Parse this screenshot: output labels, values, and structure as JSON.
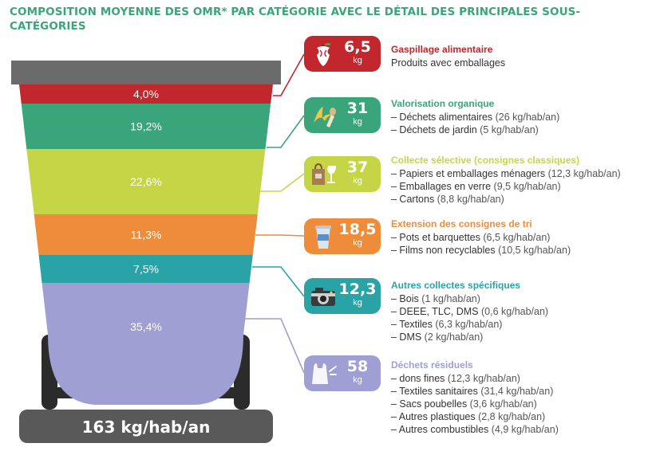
{
  "title": "COMPOSITION MOYENNE DES OMR* PAR CATÉGORIE AVEC LE DÉTAIL DES PRINCIPALES SOUS-CATÉGORIES",
  "total_label": "163 kg/hab/an",
  "colors": {
    "title": "#3aa57a",
    "bin_lid": "#6b6b6b",
    "bin_base": "#595959",
    "wheel": "#2b2b2b"
  },
  "chart_data": {
    "type": "bar",
    "title": "COMPOSITION MOYENNE DES OMR* PAR CATÉGORIE AVEC LE DÉTAIL DES PRINCIPALES SOUS-CATÉGORIES",
    "unit": "kg",
    "categories": [
      "Gaspillage alimentaire",
      "Valorisation organique",
      "Collecte sélective (consignes classiques)",
      "Extension des consignes de tri",
      "Autres collectes spécifiques",
      "Déchets résiduels"
    ],
    "values": [
      6.5,
      31,
      37,
      18.5,
      12.3,
      58
    ],
    "value_labels": [
      "6,5",
      "31",
      "37",
      "18,5",
      "12,3",
      "58"
    ],
    "shares": [
      4.0,
      19.2,
      22.6,
      11.3,
      7.5,
      35.4
    ],
    "share_labels": [
      "4,0%",
      "19,2%",
      "22,6%",
      "11,3%",
      "7,5%",
      "35,4%"
    ],
    "total": "163 kg/hab/an"
  },
  "categories": [
    {
      "title": "Gaspillage alimentaire",
      "value": "6,5",
      "unit": "kg",
      "percent": "4,0%",
      "color": "#c1272d",
      "icon": "apple-core-icon",
      "items": [
        {
          "label": "Produits avec emballages",
          "detail": ""
        }
      ]
    },
    {
      "title": "Valorisation organique",
      "value": "31",
      "unit": "kg",
      "percent": "19,2%",
      "color": "#3aa57a",
      "icon": "banana-peel-icon",
      "items": [
        {
          "label": "– Déchets alimentaires",
          "detail": " (26 kg/hab/an)"
        },
        {
          "label": "– Déchets de jardin",
          "detail": " (5 kg/hab/an)"
        }
      ]
    },
    {
      "title": "Collecte sélective (consignes classiques)",
      "value": "37",
      "unit": "kg",
      "percent": "22,6%",
      "color": "#c5d545",
      "icon": "paper-bag-and-glass-icon",
      "items": [
        {
          "label": "– Papiers et emballages ménagers",
          "detail": " (12,3 kg/hab/an)"
        },
        {
          "label": "– Emballages en verre",
          "detail": " (9,5 kg/hab/an)"
        },
        {
          "label": "– Cartons",
          "detail": " (8,8 kg/hab/an)"
        }
      ]
    },
    {
      "title": "Extension des consignes de tri",
      "value": "18,5",
      "unit": "kg",
      "percent": "11,3%",
      "color": "#ef8c3a",
      "icon": "plastic-cup-icon",
      "items": [
        {
          "label": "– Pots et barquettes",
          "detail": " (6,5 kg/hab/an)"
        },
        {
          "label": "– Films non recyclables",
          "detail": " (10,5 kg/hab/an)"
        }
      ]
    },
    {
      "title": "Autres collectes spécifiques",
      "value": "12,3",
      "unit": "kg",
      "percent": "7,5%",
      "color": "#2aa3a6",
      "icon": "camera-icon",
      "items": [
        {
          "label": "– Bois",
          "detail": " (1 kg/hab/an)"
        },
        {
          "label": "– DEEE, TLC, DMS",
          "detail": " (0,6 kg/hab/an)"
        },
        {
          "label": "– Textiles",
          "detail": " (6,3 kg/hab/an)"
        },
        {
          "label": "– DMS",
          "detail": " (2 kg/hab/an)"
        }
      ]
    },
    {
      "title": "Déchets résiduels",
      "value": "58",
      "unit": "kg",
      "percent": "35,4%",
      "color": "#9f9fd4",
      "icon": "plastic-bag-icon",
      "items": [
        {
          "label": "– dons fines",
          "detail": " (12,3 kg/hab/an)"
        },
        {
          "label": "– Textiles sanitaires",
          "detail": " (31,4 kg/hab/an)"
        },
        {
          "label": "– Sacs poubelles",
          "detail": " (3,6 kg/hab/an)"
        },
        {
          "label": "– Autres plastiques",
          "detail": " (2,8 kg/hab/an)"
        },
        {
          "label": "– Autres combustibles",
          "detail": " (4,9 kg/hab/an)"
        }
      ]
    }
  ]
}
